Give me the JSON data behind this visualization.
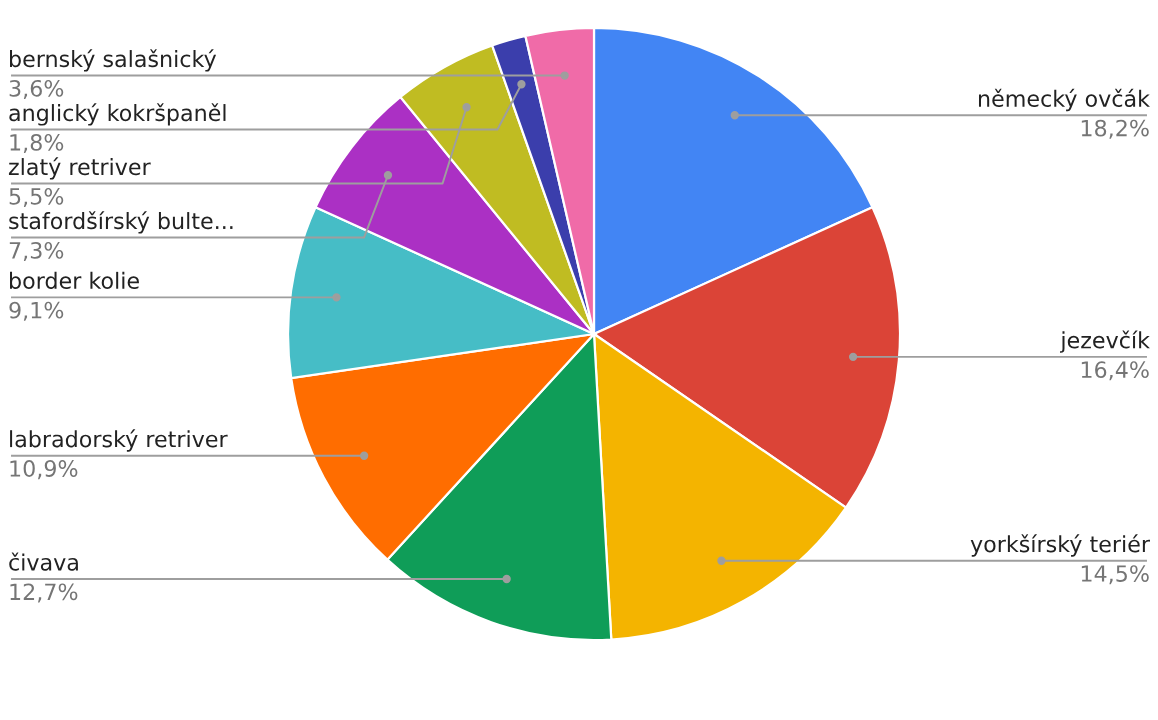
{
  "chart_data": {
    "type": "pie",
    "categories": [
      "německý ovčák",
      "jezevčík",
      "yorkšírský teriér",
      "čivava",
      "labradorský retriver",
      "border kolie",
      "stafordšírský bulte...",
      "zlatý retriver",
      "anglický kokršpaněl",
      "bernský salašnický"
    ],
    "values": [
      18.2,
      16.4,
      14.5,
      12.7,
      10.9,
      9.1,
      7.3,
      5.5,
      1.8,
      3.6
    ],
    "value_labels": [
      "18,2%",
      "16,4%",
      "14,5%",
      "12,7%",
      "10,9%",
      "9,1%",
      "7,3%",
      "5,5%",
      "1,8%",
      "3,6%"
    ],
    "colors": [
      "#4285f4",
      "#db4437",
      "#f4b400",
      "#0f9d58",
      "#ff6d00",
      "#46bdc6",
      "#ab30c4",
      "#c0bc22",
      "#3b3eac",
      "#f06ba8"
    ],
    "legend": false
  }
}
